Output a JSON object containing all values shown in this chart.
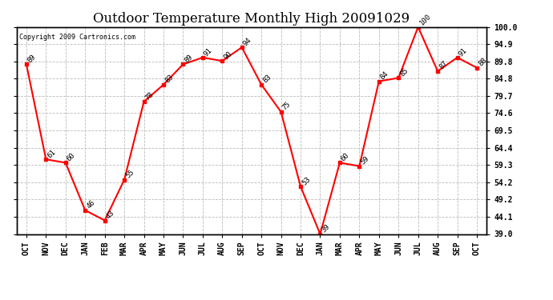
{
  "title": "Outdoor Temperature Monthly High 20091029",
  "copyright": "Copyright 2009 Cartronics.com",
  "x_labels": [
    "OCT",
    "NOV",
    "DEC",
    "JAN",
    "FEB",
    "MAR",
    "APR",
    "MAY",
    "JUN",
    "JUL",
    "AUG",
    "SEP",
    "OCT",
    "NOV",
    "DEC",
    "JAN",
    "MAR",
    "APR",
    "MAY",
    "JUN",
    "JUL",
    "AUG",
    "SEP",
    "OCT"
  ],
  "y_values": [
    89,
    61,
    60,
    46,
    43,
    55,
    78,
    83,
    89,
    91,
    90,
    94,
    83,
    75,
    53,
    39,
    60,
    59,
    84,
    85,
    100,
    87,
    91,
    88
  ],
  "ylim": [
    39.0,
    100.0
  ],
  "y_ticks": [
    39.0,
    44.1,
    49.2,
    54.2,
    59.3,
    64.4,
    69.5,
    74.6,
    79.7,
    84.8,
    89.8,
    94.9,
    100.0
  ],
  "line_color": "red",
  "marker_color": "red",
  "bg_color": "white",
  "grid_color": "#bbbbbb",
  "title_fontsize": 12,
  "label_fontsize": 7,
  "annot_fontsize": 6.5
}
